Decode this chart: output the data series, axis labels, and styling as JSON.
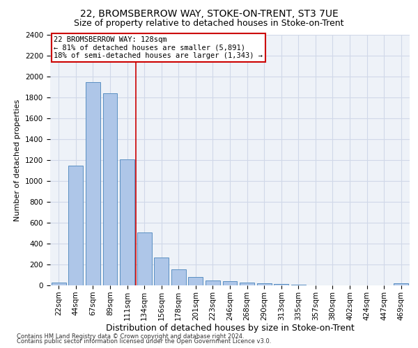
{
  "title1": "22, BROMSBERROW WAY, STOKE-ON-TRENT, ST3 7UE",
  "title2": "Size of property relative to detached houses in Stoke-on-Trent",
  "xlabel": "Distribution of detached houses by size in Stoke-on-Trent",
  "ylabel": "Number of detached properties",
  "footnote1": "Contains HM Land Registry data © Crown copyright and database right 2024.",
  "footnote2": "Contains public sector information licensed under the Open Government Licence v3.0.",
  "bar_labels": [
    "22sqm",
    "44sqm",
    "67sqm",
    "89sqm",
    "111sqm",
    "134sqm",
    "156sqm",
    "178sqm",
    "201sqm",
    "223sqm",
    "246sqm",
    "268sqm",
    "290sqm",
    "313sqm",
    "335sqm",
    "357sqm",
    "380sqm",
    "402sqm",
    "424sqm",
    "447sqm",
    "469sqm"
  ],
  "bar_values": [
    30,
    1150,
    1950,
    1840,
    1210,
    510,
    265,
    155,
    80,
    47,
    42,
    25,
    22,
    13,
    10,
    0,
    0,
    0,
    0,
    0,
    20
  ],
  "bar_color": "#aec6e8",
  "bar_edge_color": "#5a8fc2",
  "red_line_x": 4.5,
  "red_line_color": "#cc0000",
  "annotation_line1": "22 BROMSBERROW WAY: 128sqm",
  "annotation_line2": "← 81% of detached houses are smaller (5,891)",
  "annotation_line3": "18% of semi-detached houses are larger (1,343) →",
  "annotation_box_color": "#ffffff",
  "annotation_box_edge": "#cc0000",
  "ylim": [
    0,
    2400
  ],
  "yticks": [
    0,
    200,
    400,
    600,
    800,
    1000,
    1200,
    1400,
    1600,
    1800,
    2000,
    2200,
    2400
  ],
  "grid_color": "#d0d8e8",
  "bg_color": "#eef2f8",
  "title1_fontsize": 10,
  "title2_fontsize": 9,
  "ylabel_fontsize": 8,
  "xlabel_fontsize": 9,
  "tick_fontsize": 7.5,
  "annot_fontsize": 7.5,
  "footnote_fontsize": 6
}
